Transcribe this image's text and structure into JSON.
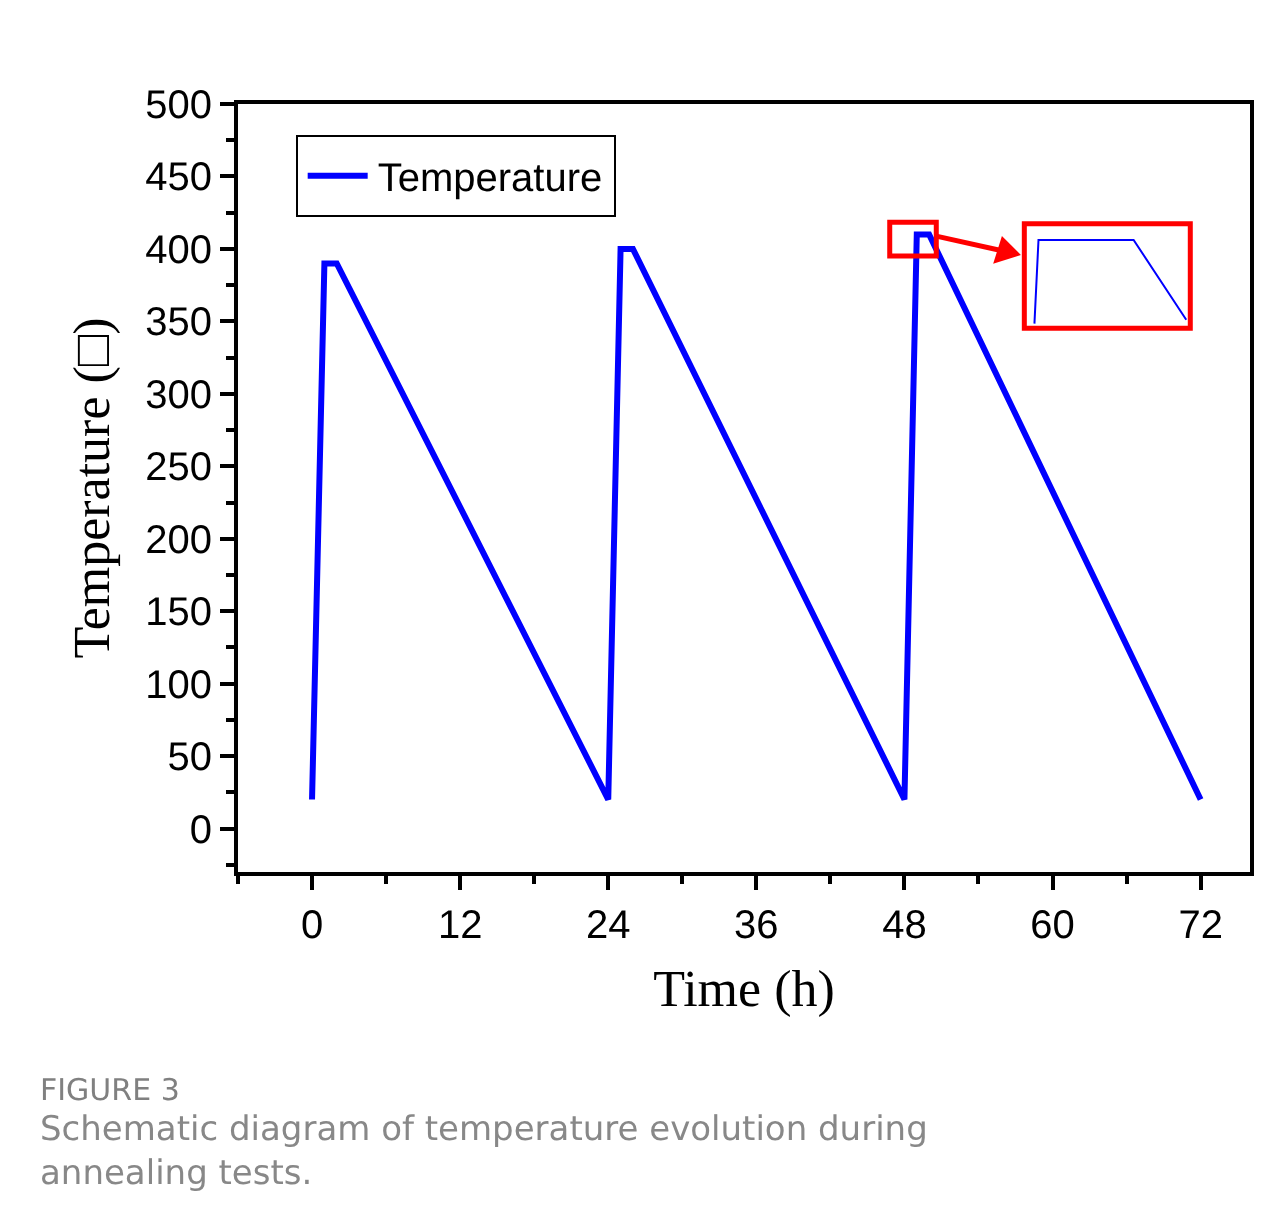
{
  "chart_data": {
    "type": "line",
    "xlabel": "Time (h)",
    "ylabel": "Temperature (□)",
    "x": [
      0,
      1,
      2,
      24,
      25,
      26,
      48,
      49,
      50,
      72
    ],
    "series": [
      {
        "name": "Temperature",
        "color": "#0000ff",
        "values": [
          20,
          390,
          390,
          20,
          400,
          400,
          20,
          410,
          410,
          20
        ]
      }
    ],
    "xlim": [
      -6,
      76
    ],
    "xticks": [
      0,
      12,
      24,
      36,
      48,
      60,
      72
    ],
    "ylim": [
      -30,
      500
    ],
    "yticks": [
      0,
      50,
      100,
      150,
      200,
      250,
      300,
      350,
      400,
      450,
      500
    ],
    "legend": "top left",
    "marker": "none",
    "line_style": "solid",
    "annotations": [
      "FIGURE 3",
      "Schematic diagram of temperature evolution during annealing tests."
    ]
  }
}
